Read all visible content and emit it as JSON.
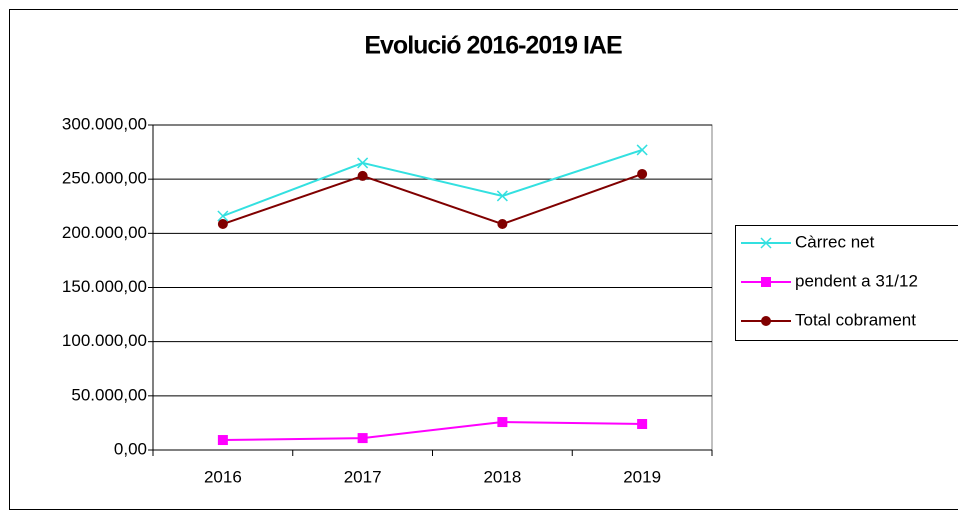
{
  "chart_data": {
    "type": "line",
    "title": "Evolució 2016-2019 IAE",
    "categories": [
      "2016",
      "2017",
      "2018",
      "2019"
    ],
    "series": [
      {
        "name": "Càrrec net",
        "color": "#33e0e0",
        "marker": "x",
        "values": [
          216000,
          265000,
          234500,
          277000
        ]
      },
      {
        "name": "pendent a 31/12",
        "color": "#ff00ff",
        "marker": "square",
        "values": [
          9200,
          11000,
          25800,
          24000
        ]
      },
      {
        "name": "Total cobrament",
        "color": "#800000",
        "marker": "circle",
        "values": [
          208600,
          253000,
          208600,
          254800
        ]
      }
    ],
    "ylim": [
      0,
      300000
    ],
    "yticks": [
      {
        "value": 0,
        "label": "0,00"
      },
      {
        "value": 50000,
        "label": "50.000,00"
      },
      {
        "value": 100000,
        "label": "100.000,00"
      },
      {
        "value": 150000,
        "label": "150.000,00"
      },
      {
        "value": 200000,
        "label": "200.000,00"
      },
      {
        "value": 250000,
        "label": "250.000,00"
      },
      {
        "value": 300000,
        "label": "300.000,00"
      }
    ],
    "grid": true,
    "legend": "right"
  }
}
